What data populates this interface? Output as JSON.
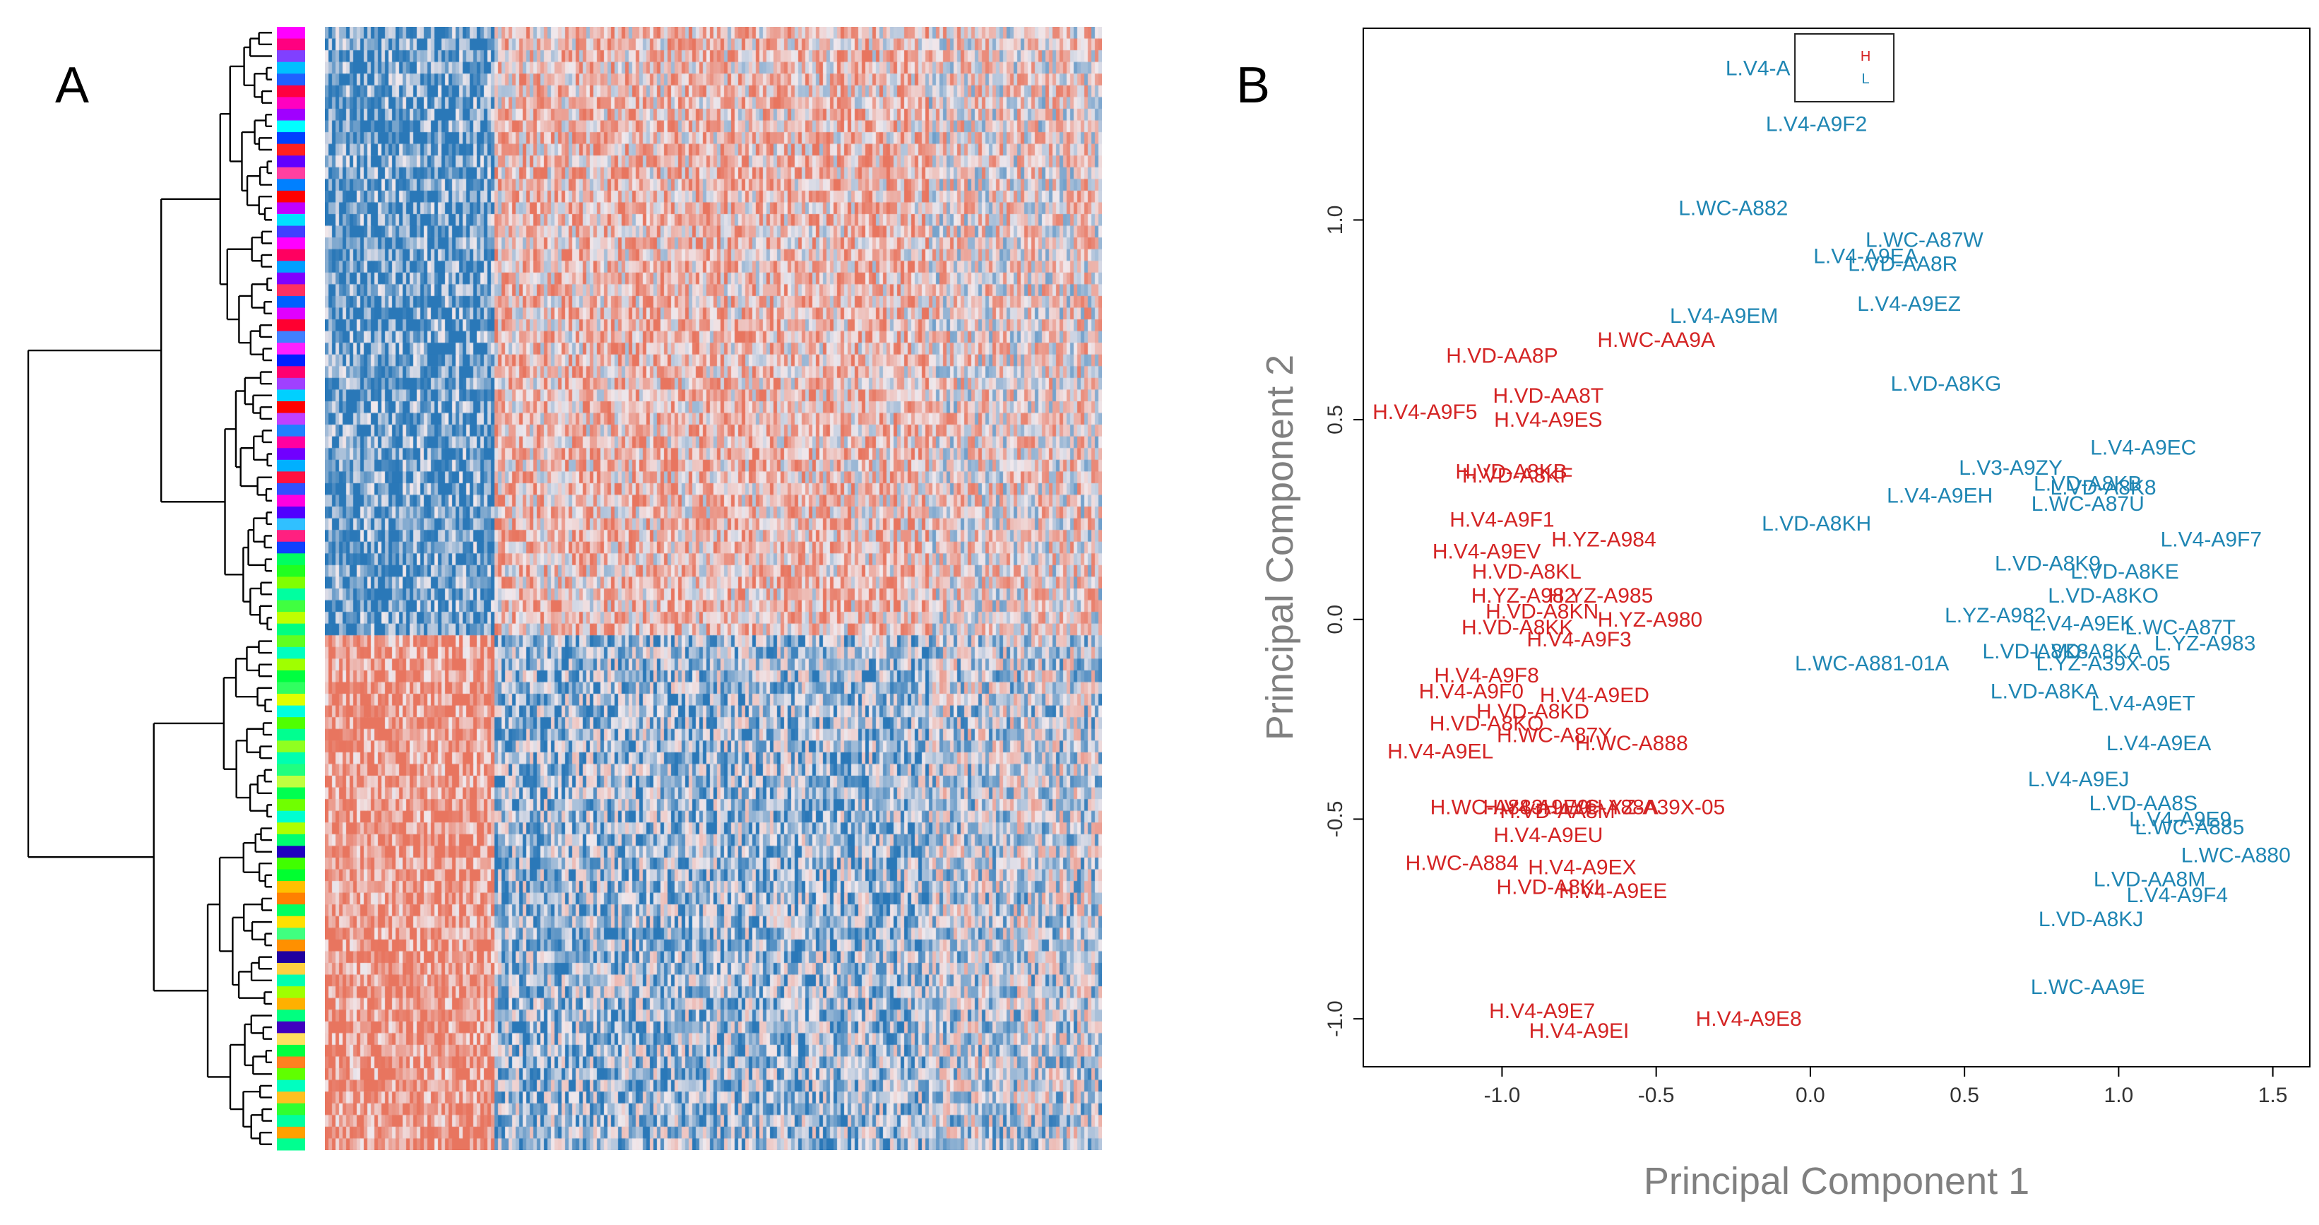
{
  "panels": {
    "a_letter": "A",
    "b_letter": "B"
  },
  "colors": {
    "high": "#d42424",
    "low": "#1f86b3",
    "heat_red": "#e8755f",
    "heat_blue": "#2a78b8"
  },
  "heatmap": {
    "row_count": 96,
    "column_blocks": [
      "blue-then-red",
      "red-then-blue"
    ],
    "side_bar_colors": [
      "#ff00ff",
      "#ff0080",
      "#8040ff",
      "#00c0ff",
      "#2060ff",
      "#ff0040",
      "#ff00c0",
      "#a000ff",
      "#00ffff",
      "#0040ff",
      "#ff2020",
      "#6000ff",
      "#ff40a0",
      "#0080ff",
      "#ff0000",
      "#c000ff",
      "#00e0ff",
      "#4040ff",
      "#ff00ff",
      "#ff0060",
      "#00a0ff",
      "#8000ff",
      "#ff3060",
      "#0060ff",
      "#e000ff",
      "#ff0030",
      "#4080ff",
      "#ff20ff",
      "#0020ff",
      "#ff0070",
      "#a040ff",
      "#00d0ff",
      "#ff0000",
      "#c040ff",
      "#2080ff",
      "#ff00a0",
      "#7000ff",
      "#00b0ff",
      "#ff1040",
      "#3050ff",
      "#ff00e0",
      "#5000ff",
      "#30c0ff",
      "#ff2080",
      "#1040ff",
      "#00ff60",
      "#20ff20",
      "#80ff00",
      "#00ffa0",
      "#40ff40",
      "#c0ff00",
      "#00ff80",
      "#60ff20",
      "#00ffc0",
      "#a0ff00",
      "#00ff40",
      "#30ff60",
      "#e0ff00",
      "#00ffe0",
      "#50ff00",
      "#00ff90",
      "#90ff20",
      "#00ffb0",
      "#20ff80",
      "#c0ff40",
      "#00ff50",
      "#70ff00",
      "#00ffd0",
      "#b0ff00",
      "#00ff70",
      "#2000c0",
      "#40ff00",
      "#00ff30",
      "#ffc000",
      "#ff8000",
      "#00ff60",
      "#ffe000",
      "#40ff80",
      "#ff9000",
      "#2000a0",
      "#ffd040",
      "#00ffb0",
      "#a0ff00",
      "#ffb000",
      "#00ff80",
      "#4000c0",
      "#ffe060",
      "#00ff40",
      "#ff8020",
      "#60ff00",
      "#00ffc0",
      "#ffc020",
      "#30ff30",
      "#00ffa0",
      "#ffa000",
      "#00ff90"
    ]
  },
  "chart_data": {
    "type": "scatter",
    "title": "",
    "xlabel": "Principal Component 1",
    "ylabel": "Principal Component 2",
    "xlim": [
      -1.45,
      1.62
    ],
    "ylim": [
      -1.12,
      1.48
    ],
    "xticks": [
      -1.0,
      -0.5,
      0.0,
      0.5,
      1.0,
      1.5
    ],
    "xtick_labels": [
      "-1.0",
      "-0.5",
      "0.0",
      "0.5",
      "1.0",
      "1.5"
    ],
    "yticks": [
      -1.0,
      -0.5,
      0.0,
      0.5,
      1.0
    ],
    "ytick_labels": [
      "-1.0",
      "-0.5",
      "0.0",
      "0.5",
      "1.0"
    ],
    "legend": {
      "entries": [
        "H",
        "L"
      ],
      "placement": "top-center"
    },
    "series": [
      {
        "name": "H",
        "color": "#d42424",
        "points": [
          {
            "label": "H.WC-AA9A",
            "x": -0.5,
            "y": 0.7
          },
          {
            "label": "H.VD-AA8P",
            "x": -1.0,
            "y": 0.66
          },
          {
            "label": "H.VD-AA8T",
            "x": -0.85,
            "y": 0.56
          },
          {
            "label": "H.V4-A9F5",
            "x": -1.25,
            "y": 0.52
          },
          {
            "label": "H.V4-A9ES",
            "x": -0.85,
            "y": 0.5
          },
          {
            "label": "H.VD-A8KB",
            "x": -0.97,
            "y": 0.37
          },
          {
            "label": "H.VD-A8KF",
            "x": -0.95,
            "y": 0.36
          },
          {
            "label": "H.V4-A9F1",
            "x": -1.0,
            "y": 0.25
          },
          {
            "label": "H.YZ-A984",
            "x": -0.67,
            "y": 0.2
          },
          {
            "label": "H.V4-A9EV",
            "x": -1.05,
            "y": 0.17
          },
          {
            "label": "H.VD-A8KL",
            "x": -0.92,
            "y": 0.12
          },
          {
            "label": "H.YZ-A985",
            "x": -0.68,
            "y": 0.06
          },
          {
            "label": "H.YZ-A982",
            "x": -0.93,
            "y": 0.06
          },
          {
            "label": "H.VD-A8KN",
            "x": -0.87,
            "y": 0.02
          },
          {
            "label": "H.YZ-A980",
            "x": -0.52,
            "y": 0.0
          },
          {
            "label": "H.VD-A8KK",
            "x": -0.95,
            "y": -0.02
          },
          {
            "label": "H.V4-A9F3",
            "x": -0.75,
            "y": -0.05
          },
          {
            "label": "H.V4-A9F8",
            "x": -1.05,
            "y": -0.14
          },
          {
            "label": "H.V4-A9F0",
            "x": -1.1,
            "y": -0.18
          },
          {
            "label": "H.V4-A9ED",
            "x": -0.7,
            "y": -0.19
          },
          {
            "label": "H.VD-A8KD",
            "x": -0.9,
            "y": -0.23
          },
          {
            "label": "H.VD-A8KO",
            "x": -1.05,
            "y": -0.26
          },
          {
            "label": "H.WC-A87Y",
            "x": -0.83,
            "y": -0.29
          },
          {
            "label": "H.WC-A888",
            "x": -0.58,
            "y": -0.31
          },
          {
            "label": "H.V4-A9EL",
            "x": -1.2,
            "y": -0.33
          },
          {
            "label": "H.WC-A883",
            "x": -1.05,
            "y": -0.47
          },
          {
            "label": "H.V4-A9E9",
            "x": -0.89,
            "y": -0.47
          },
          {
            "label": "H.WC-A88A",
            "x": -0.68,
            "y": -0.47
          },
          {
            "label": "H.YZ-A39X-05",
            "x": -0.5,
            "y": -0.47
          },
          {
            "label": "H.VD-AA8M",
            "x": -0.82,
            "y": -0.48
          },
          {
            "label": "H.V4-A9EU",
            "x": -0.85,
            "y": -0.54
          },
          {
            "label": "H.WC-A884",
            "x": -1.13,
            "y": -0.61
          },
          {
            "label": "H.V4-A9EX",
            "x": -0.74,
            "y": -0.62
          },
          {
            "label": "H.VD-A8KI",
            "x": -0.85,
            "y": -0.67
          },
          {
            "label": "H.V4-A9EE",
            "x": -0.64,
            "y": -0.68
          },
          {
            "label": "H.V4-A9E7",
            "x": -0.87,
            "y": -0.98
          },
          {
            "label": "H.V4-A9EI",
            "x": -0.75,
            "y": -1.03
          },
          {
            "label": "H.V4-A9E8",
            "x": -0.2,
            "y": -1.0
          }
        ]
      },
      {
        "name": "L",
        "color": "#1f86b3",
        "points": [
          {
            "label": "L.V4-A",
            "x": -0.17,
            "y": 1.38
          },
          {
            "label": "L.V4-A9F2",
            "x": 0.02,
            "y": 1.24
          },
          {
            "label": "L.WC-A882",
            "x": -0.25,
            "y": 1.03
          },
          {
            "label": "L.WC-A87W",
            "x": 0.37,
            "y": 0.95
          },
          {
            "label": "L.V4-A9EA",
            "x": 0.18,
            "y": 0.91
          },
          {
            "label": "L.VD-AA8R",
            "x": 0.3,
            "y": 0.89
          },
          {
            "label": "L.V4-A9EZ",
            "x": 0.32,
            "y": 0.79
          },
          {
            "label": "L.V4-A9EM",
            "x": -0.28,
            "y": 0.76
          },
          {
            "label": "L.VD-A8KG",
            "x": 0.44,
            "y": 0.59
          },
          {
            "label": "L.V4-A9EC",
            "x": 1.08,
            "y": 0.43
          },
          {
            "label": "L.V3-A9ZY",
            "x": 0.65,
            "y": 0.38
          },
          {
            "label": "L.VD-A8KB",
            "x": 0.9,
            "y": 0.34
          },
          {
            "label": "L.VD-A8K8",
            "x": 0.95,
            "y": 0.33
          },
          {
            "label": "L.V4-A9EH",
            "x": 0.42,
            "y": 0.31
          },
          {
            "label": "L.WC-A87U",
            "x": 0.9,
            "y": 0.29
          },
          {
            "label": "L.VD-A8KH",
            "x": 0.02,
            "y": 0.24
          },
          {
            "label": "L.V4-A9F7",
            "x": 1.3,
            "y": 0.2
          },
          {
            "label": "L.VD-A8K9",
            "x": 0.77,
            "y": 0.14
          },
          {
            "label": "L.VD-A8KE",
            "x": 1.02,
            "y": 0.12
          },
          {
            "label": "L.VD-A8KO",
            "x": 0.95,
            "y": 0.06
          },
          {
            "label": "L.YZ-A982",
            "x": 0.6,
            "y": 0.01
          },
          {
            "label": "L.V4-A9EK",
            "x": 0.88,
            "y": -0.01
          },
          {
            "label": "L.WC-A87T",
            "x": 1.2,
            "y": -0.02
          },
          {
            "label": "L.YZ-A983",
            "x": 1.28,
            "y": -0.06
          },
          {
            "label": "L.VD-A8K8",
            "x": 0.73,
            "y": -0.08
          },
          {
            "label": "L.VD-A8KA",
            "x": 0.9,
            "y": -0.08
          },
          {
            "label": "L.WC-A881-01A",
            "x": 0.2,
            "y": -0.11
          },
          {
            "label": "L.YZ-A39X-05",
            "x": 0.95,
            "y": -0.11
          },
          {
            "label": "L.VD-A8KA",
            "x": 0.76,
            "y": -0.18
          },
          {
            "label": "L.V4-A9ET",
            "x": 1.08,
            "y": -0.21
          },
          {
            "label": "L.V4-A9EA",
            "x": 1.13,
            "y": -0.31
          },
          {
            "label": "L.V4-A9EJ",
            "x": 0.87,
            "y": -0.4
          },
          {
            "label": "L.VD-AA8S",
            "x": 1.08,
            "y": -0.46
          },
          {
            "label": "L.V4-A9E9",
            "x": 1.2,
            "y": -0.5
          },
          {
            "label": "L.WC-A885",
            "x": 1.23,
            "y": -0.52
          },
          {
            "label": "L.WC-A880",
            "x": 1.38,
            "y": -0.59
          },
          {
            "label": "L.VD-AA8M",
            "x": 1.1,
            "y": -0.65
          },
          {
            "label": "L.V4-A9F4",
            "x": 1.19,
            "y": -0.69
          },
          {
            "label": "L.VD-A8KJ",
            "x": 0.91,
            "y": -0.75
          },
          {
            "label": "L.WC-AA9E",
            "x": 0.9,
            "y": -0.92
          }
        ]
      }
    ]
  }
}
